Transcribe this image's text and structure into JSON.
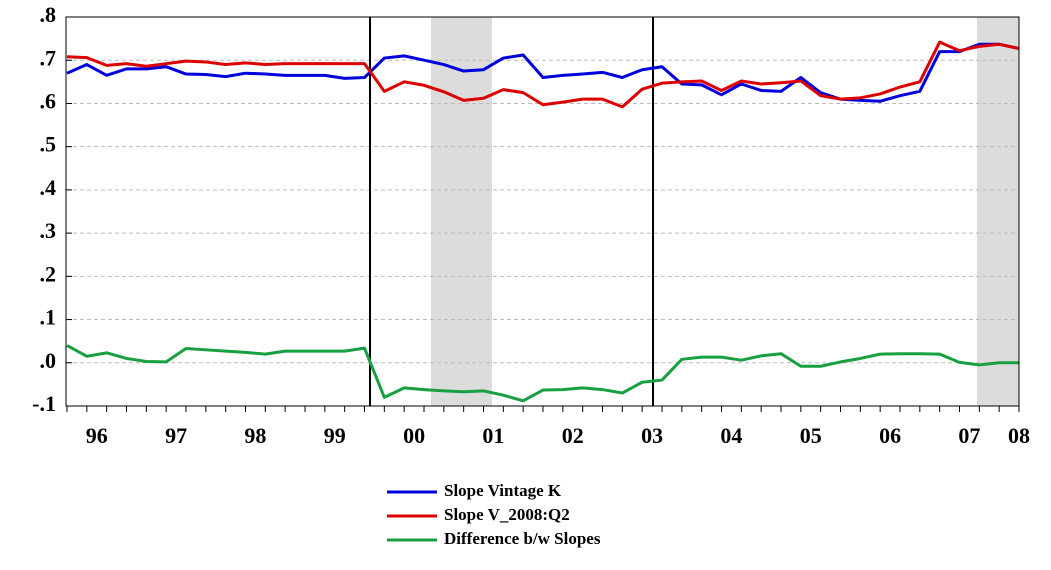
{
  "chart_data": {
    "type": "line",
    "categories": [
      "96",
      null,
      null,
      null,
      "97",
      null,
      null,
      null,
      "98",
      null,
      null,
      null,
      "99",
      null,
      null,
      null,
      "00",
      null,
      null,
      null,
      "01",
      null,
      null,
      null,
      "02",
      null,
      null,
      null,
      "03",
      null,
      null,
      null,
      "04",
      null,
      null,
      null,
      "05",
      null,
      null,
      null,
      "06",
      null,
      null,
      null,
      "07",
      null,
      null,
      null,
      "08"
    ],
    "series": [
      {
        "name": "Slope Vintage K",
        "color": "#0000dd",
        "values": [
          0.67,
          0.69,
          0.665,
          0.68,
          0.68,
          0.685,
          0.668,
          0.667,
          0.662,
          0.67,
          0.668,
          0.665,
          0.665,
          0.665,
          0.658,
          0.66,
          0.705,
          0.71,
          0.7,
          0.69,
          0.675,
          0.678,
          0.705,
          0.712,
          0.66,
          0.665,
          0.668,
          0.672,
          0.66,
          0.678,
          0.685,
          0.645,
          0.643,
          0.62,
          0.645,
          0.63,
          0.628,
          0.66,
          0.625,
          0.61,
          0.607,
          0.605,
          0.618,
          0.628,
          0.72,
          0.72,
          0.737,
          0.737,
          0.727
        ]
      },
      {
        "name": "Slope V_2008:Q2",
        "color": "#dd0000",
        "values": [
          0.708,
          0.706,
          0.688,
          0.692,
          0.686,
          0.692,
          0.698,
          0.696,
          0.69,
          0.694,
          0.69,
          0.692,
          0.692,
          0.692,
          0.692,
          0.692,
          0.628,
          0.65,
          0.642,
          0.627,
          0.607,
          0.612,
          0.632,
          0.625,
          0.597,
          0.603,
          0.61,
          0.61,
          0.592,
          0.633,
          0.647,
          0.65,
          0.652,
          0.63,
          0.652,
          0.645,
          0.648,
          0.652,
          0.618,
          0.61,
          0.613,
          0.622,
          0.638,
          0.65,
          0.742,
          0.722,
          0.732,
          0.737,
          0.727
        ]
      },
      {
        "name": "Difference b/w Slopes",
        "color": "#18a040",
        "values": [
          0.04,
          0.015,
          0.023,
          0.01,
          0.003,
          0.002,
          0.033,
          0.03,
          0.027,
          0.024,
          0.02,
          0.027,
          0.027,
          0.027,
          0.027,
          0.034,
          -0.08,
          -0.058,
          -0.062,
          -0.065,
          -0.067,
          -0.065,
          -0.075,
          -0.088,
          -0.063,
          -0.062,
          -0.058,
          -0.062,
          -0.07,
          -0.045,
          -0.04,
          0.008,
          0.013,
          0.013,
          0.006,
          0.016,
          0.021,
          -0.008,
          -0.008,
          0.002,
          0.01,
          0.02,
          0.021,
          0.021,
          0.02,
          0.001,
          -0.005,
          0,
          0
        ]
      }
    ],
    "ylim": [
      -0.1,
      0.8
    ],
    "yticks": [
      {
        "value": -0.1,
        "label": "-.1"
      },
      {
        "value": 0,
        "label": ".0"
      },
      {
        "value": 0.1,
        "label": ".1"
      },
      {
        "value": 0.2,
        "label": ".2"
      },
      {
        "value": 0.3,
        "label": ".3"
      },
      {
        "value": 0.4,
        "label": ".4"
      },
      {
        "value": 0.5,
        "label": ".5"
      },
      {
        "value": 0.6,
        "label": ".6"
      },
      {
        "value": 0.7,
        "label": ".7"
      },
      {
        "value": 0.8,
        "label": ".8"
      }
    ],
    "grid": true
  }
}
